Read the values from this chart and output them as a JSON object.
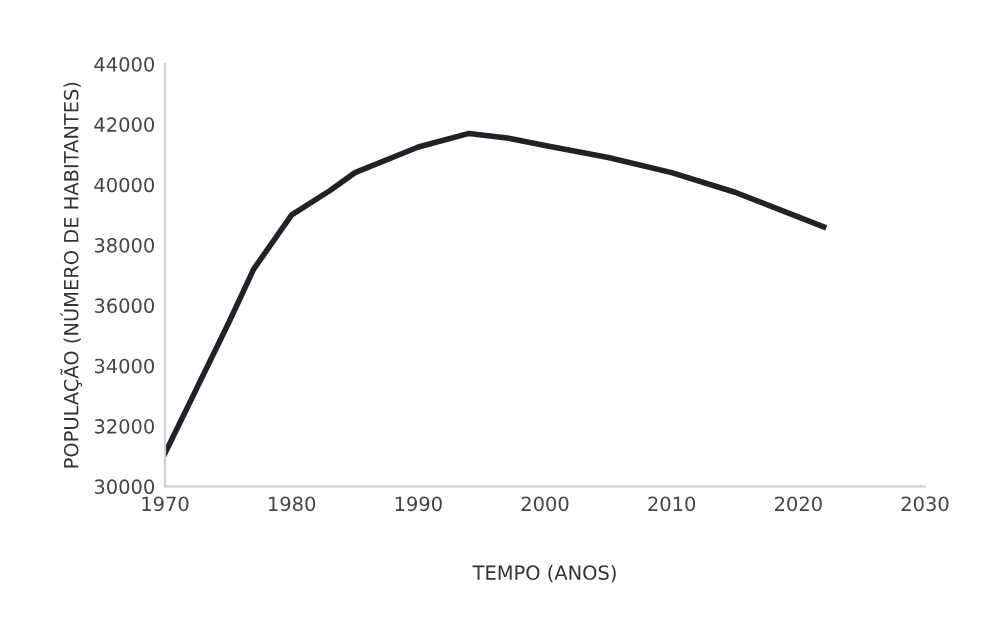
{
  "chart_data": {
    "type": "line",
    "xlabel": "TEMPO (ANOS)",
    "ylabel": "POPULAÇÃO (NÚMERO DE HABITANTES)",
    "x": [
      1970,
      1975,
      1977,
      1980,
      1983,
      1985,
      1990,
      1994,
      1997,
      2000,
      2005,
      2010,
      2015,
      2022
    ],
    "series": [
      {
        "color": "#1f2329",
        "values": [
          31100,
          35400,
          37200,
          39000,
          39800,
          40400,
          41250,
          41700,
          41550,
          41300,
          40900,
          40400,
          39750,
          38600
        ]
      }
    ],
    "xlim": [
      1970,
      2030
    ],
    "xticks": [
      1970,
      1980,
      1990,
      2000,
      2010,
      2020,
      2030
    ],
    "ylim": [
      30000,
      44000
    ],
    "yticks": [
      30000,
      32000,
      34000,
      36000,
      38000,
      40000,
      42000,
      44000
    ],
    "grid": false,
    "legend": false,
    "marker": "none",
    "line_style": "solid"
  }
}
